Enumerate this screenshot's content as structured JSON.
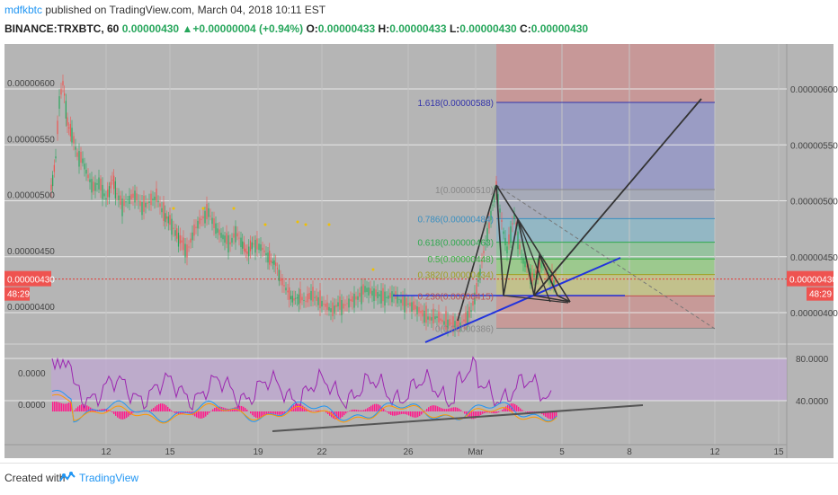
{
  "header": {
    "author": "mdfkbtc",
    "published": "published on TradingView.com, March 04, 2018 10:11 EST",
    "symbol": "BINANCE:TRXBTC, 60",
    "last": "0.00000430",
    "change": "▲+0.00000004 (+0.94%)",
    "o_label": "O:",
    "o_value": "0.00000433",
    "h_label": "H:",
    "h_value": "0.00000433",
    "l_label": "L:",
    "l_value": "0.00000430",
    "c_label": "C:",
    "c_value": "0.00000430"
  },
  "footer": {
    "created": "Created with",
    "brand": "TradingView"
  },
  "chart_data": {
    "type": "candlestick",
    "price_axis": {
      "ticks": [
        "0.00000600",
        "0.00000550",
        "0.00000500",
        "0.00000450",
        "0.00000400"
      ],
      "tick_values": [
        600,
        550,
        500,
        450,
        400
      ],
      "current_price": "0.00000430",
      "current_value": 430,
      "countdown": "48:29"
    },
    "x_axis": {
      "ticks": [
        "12",
        "15",
        "19",
        "22",
        "26",
        "Mar",
        "5",
        "8",
        "12",
        "15"
      ]
    },
    "fibonacci": [
      {
        "label": "1.618(0.00000588)",
        "value": 588,
        "color": "#3333aa"
      },
      {
        "label": "1(0.00000510)",
        "value": 510,
        "color": "#888888"
      },
      {
        "label": "0.786(0.00000484)",
        "value": 484,
        "color": "#3a8fc0"
      },
      {
        "label": "0.618(0.00000463)",
        "value": 463,
        "color": "#2fa84f"
      },
      {
        "label": "0.5(0.00000448)",
        "value": 448,
        "color": "#3cb043"
      },
      {
        "label": "0.382(0.00000434)",
        "value": 434,
        "color": "#a0a020"
      },
      {
        "label": "0.236(0.00000415)",
        "value": 415,
        "color": "#c05050"
      },
      {
        "label": "0(0.00000386)",
        "value": 386,
        "color": "#888888"
      }
    ],
    "oscillator": {
      "ticks": [
        "80.0000",
        "40.0000"
      ],
      "tick_values": [
        80,
        40
      ],
      "left_ticks": [
        "0.0000",
        "0.0000"
      ]
    },
    "colors": {
      "up": "#26a65b",
      "down": "#ef5350",
      "trendline": "#2233dd",
      "pattern": "#333333",
      "rsi": "#9c27b0",
      "macd_hist": "#ff1a8c",
      "price_label_bg": "#ef5350"
    }
  }
}
